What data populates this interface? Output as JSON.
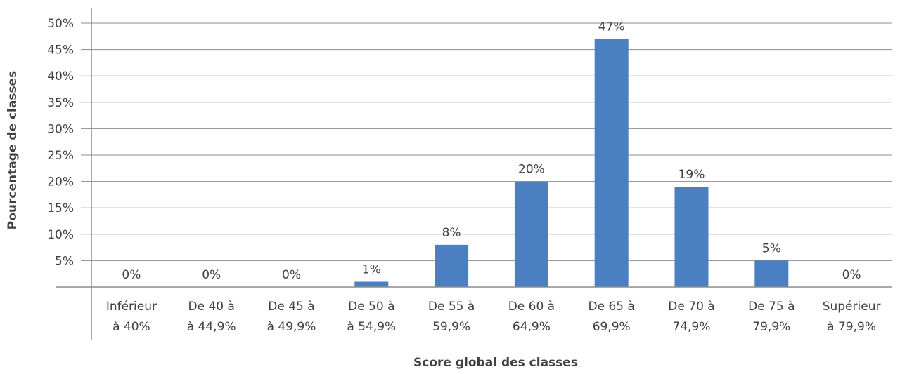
{
  "chart_data": {
    "type": "bar",
    "title": "",
    "xlabel": "Score global des classes",
    "ylabel": "Pourcentage de classes",
    "ylim": [
      0,
      50
    ],
    "yticks": [
      "5%",
      "10%",
      "15%",
      "20%",
      "25%",
      "30%",
      "35%",
      "40%",
      "45%",
      "50%"
    ],
    "categories": [
      [
        "Inférieur",
        "à 40%"
      ],
      [
        "De 40 à",
        "à 44,9%"
      ],
      [
        "De 45 à",
        "à 49,9%"
      ],
      [
        "De 50 à",
        "à 54,9%"
      ],
      [
        "De 55 à",
        "59,9%"
      ],
      [
        "De 60 à",
        "64,9%"
      ],
      [
        "De 65 à",
        "69,9%"
      ],
      [
        "De 70 à",
        "74,9%"
      ],
      [
        "De 75 à",
        "79,9%"
      ],
      [
        "Supérieur",
        "à 79,9%"
      ]
    ],
    "values": [
      0,
      0,
      0,
      1,
      8,
      20,
      47,
      19,
      5,
      0
    ],
    "data_labels": [
      "0%",
      "0%",
      "0%",
      "1%",
      "8%",
      "20%",
      "47%",
      "19%",
      "5%",
      "0%"
    ],
    "grid": true,
    "legend": "none",
    "bar_color": "#4a7fc1",
    "grid_color": "#8c8c8c",
    "text_color": "#404040"
  }
}
